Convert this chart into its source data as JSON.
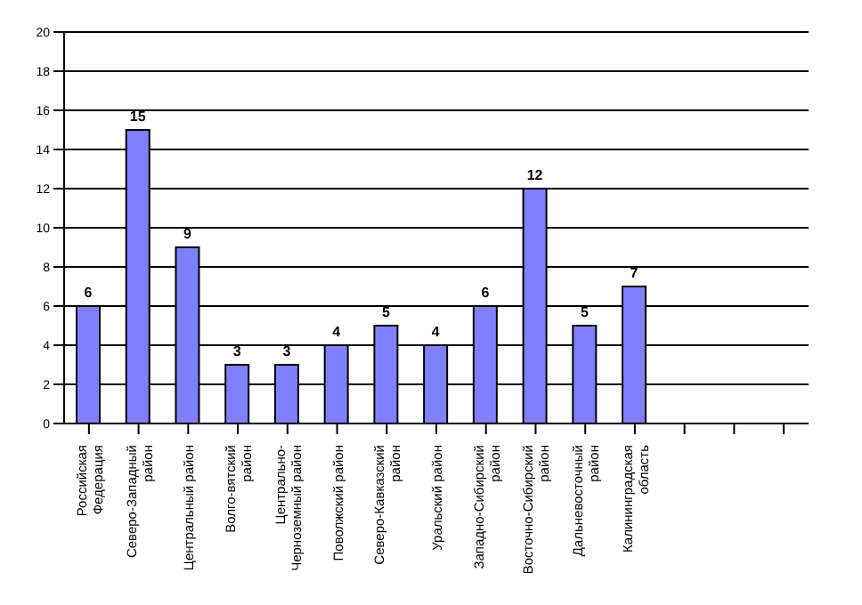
{
  "chart_data": {
    "type": "bar",
    "categories": [
      "Российская Федерация",
      "Северо-Западный район",
      "Центральный район",
      "Волго-вятский район",
      "Центрально-Черноземный район",
      "Поволжский район",
      "Северо-Кавказский район",
      "Уральский район",
      "Западно-Сибирский район",
      "Восточно-Сибирский район",
      "Дальневосточный район",
      "Калининградская область",
      null,
      null,
      null
    ],
    "values": [
      6,
      15,
      9,
      3,
      3,
      4,
      5,
      4,
      6,
      12,
      5,
      7,
      null,
      null,
      null
    ],
    "color": "#8080ff",
    "ylim": [
      0,
      20
    ],
    "yticks": [
      0,
      2,
      4,
      6,
      8,
      10,
      12,
      14,
      16,
      18,
      20
    ],
    "grid": "y",
    "data_labels": true
  }
}
